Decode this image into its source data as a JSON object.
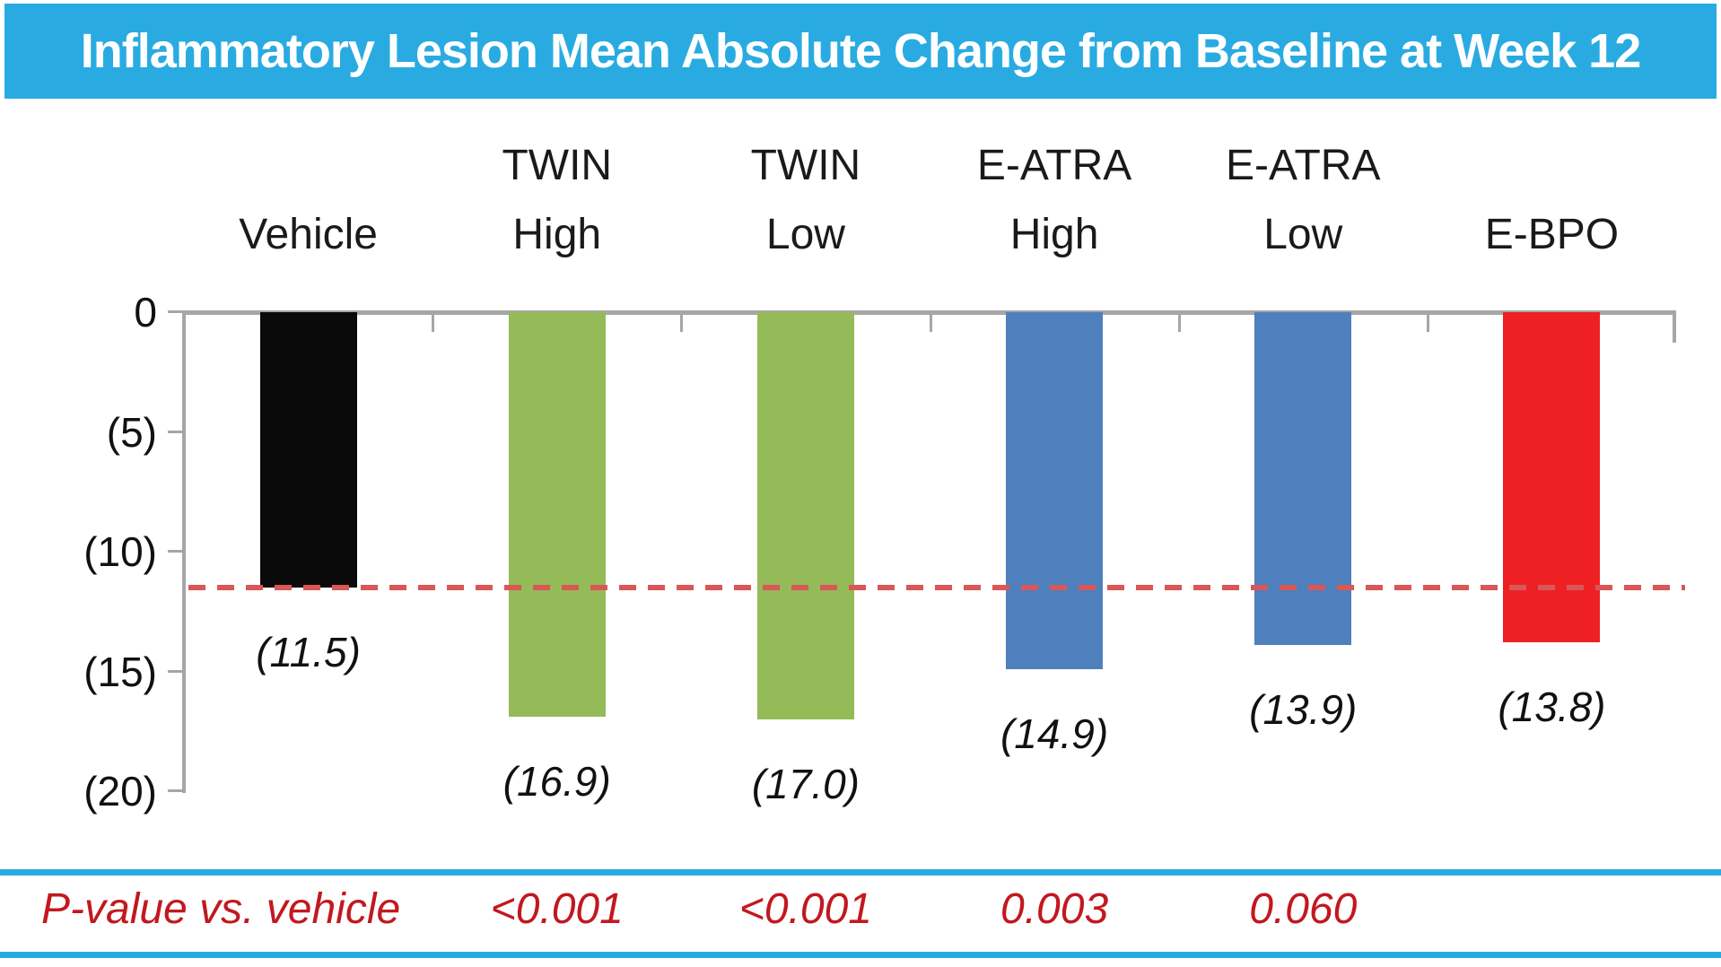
{
  "title": "Inflammatory Lesion Mean Absolute Change from Baseline at Week 12",
  "colors": {
    "band_cyan": "#29abe2",
    "axis_gray": "#a6a6a6",
    "pvalue_red": "#c2181f",
    "reference_red": "#d95757"
  },
  "chart_data": {
    "type": "bar",
    "title": "Inflammatory Lesion Mean Absolute Change from Baseline at Week 12",
    "categories": [
      "Vehicle",
      "TWIN High",
      "TWIN Low",
      "E-ATRA High",
      "E-ATRA Low",
      "E-BPO"
    ],
    "category_lines": [
      [
        "Vehicle"
      ],
      [
        "TWIN",
        "High"
      ],
      [
        "TWIN",
        "Low"
      ],
      [
        "E-ATRA",
        "High"
      ],
      [
        "E-ATRA",
        "Low"
      ],
      [
        "E-BPO"
      ]
    ],
    "values": [
      -11.5,
      -16.9,
      -17.0,
      -14.9,
      -13.9,
      -13.8
    ],
    "bar_labels": [
      "(11.5)",
      "(16.9)",
      "(17.0)",
      "(14.9)",
      "(13.9)",
      "(13.8)"
    ],
    "bar_colors": [
      "#0a0a0a",
      "#94bb58",
      "#94bb58",
      "#4e80bd",
      "#4e80bd",
      "#ee2024"
    ],
    "ylim": [
      -20,
      0
    ],
    "y_ticks": [
      {
        "value": 0,
        "label": "0"
      },
      {
        "value": -5,
        "label": "(5)"
      },
      {
        "value": -10,
        "label": "(10)"
      },
      {
        "value": -15,
        "label": "(15)"
      },
      {
        "value": -20,
        "label": "(20)"
      }
    ],
    "reference_line": {
      "value": -11.5,
      "style": "dashed",
      "color": "#d95757"
    },
    "xlabel": "",
    "ylabel": "",
    "legend": "none",
    "grid": false
  },
  "pvalue_row": {
    "label": "P-value vs. vehicle",
    "values": [
      "",
      "<0.001",
      "<0.001",
      "0.003",
      "0.060",
      ""
    ]
  }
}
